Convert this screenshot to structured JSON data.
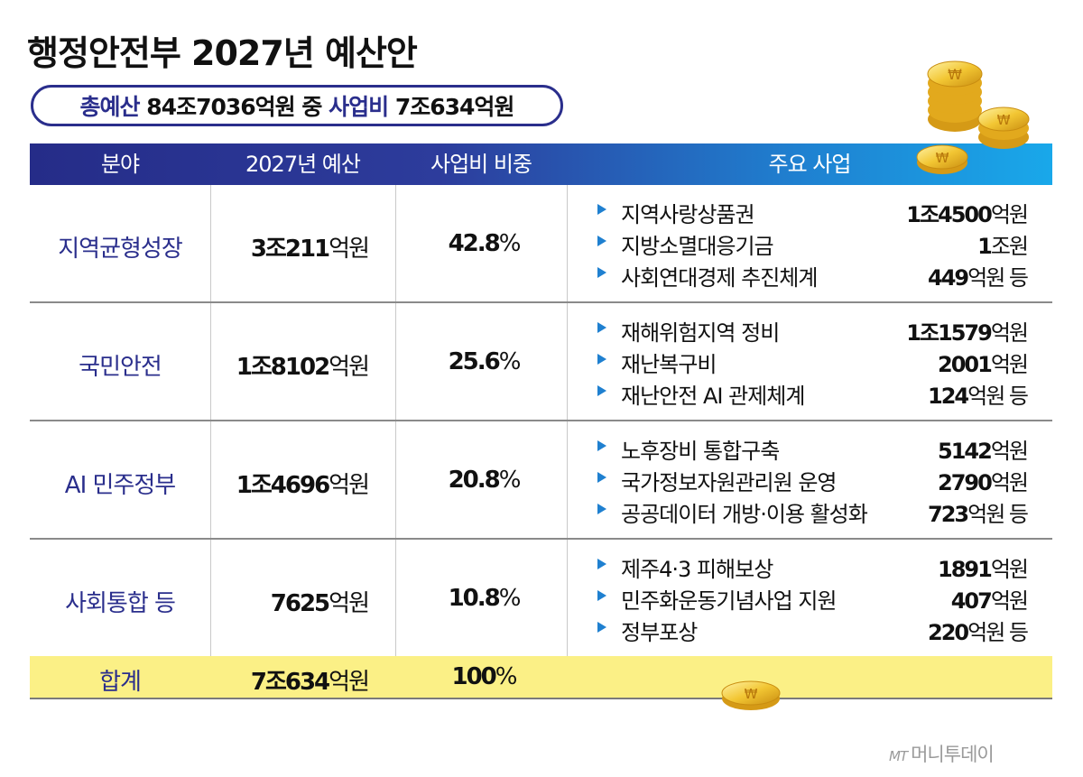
{
  "title": "행정안전부 2027년 예산안",
  "summary": {
    "label1": "총예산",
    "value1": "84조7036억원",
    "mid": "중",
    "label2": "사업비",
    "value2": "7조634억원"
  },
  "table": {
    "headers": [
      "분야",
      "2027년 예산",
      "사업비 비중",
      "주요 사업"
    ],
    "rows": [
      {
        "category": "지역균형성장",
        "budget_num": "3조211",
        "budget_unit": "억원",
        "ratio_num": "42.8",
        "ratio_unit": "%",
        "items": [
          {
            "name": "지역사랑상품권",
            "amount": "1조4500",
            "unit": "억원"
          },
          {
            "name": "지방소멸대응기금",
            "amount": "1",
            "unit": "조원"
          },
          {
            "name": "사회연대경제 추진체계",
            "amount": "449",
            "unit": "억원 등"
          }
        ]
      },
      {
        "category": "국민안전",
        "budget_num": "1조8102",
        "budget_unit": "억원",
        "ratio_num": "25.6",
        "ratio_unit": "%",
        "items": [
          {
            "name": "재해위험지역 정비",
            "amount": "1조1579",
            "unit": "억원"
          },
          {
            "name": "재난복구비",
            "amount": "2001",
            "unit": "억원"
          },
          {
            "name": "재난안전 AI 관제체계",
            "amount": "124",
            "unit": "억원 등"
          }
        ]
      },
      {
        "category": "AI 민주정부",
        "budget_num": "1조4696",
        "budget_unit": "억원",
        "ratio_num": "20.8",
        "ratio_unit": "%",
        "items": [
          {
            "name": "노후장비 통합구축",
            "amount": "5142",
            "unit": "억원"
          },
          {
            "name": "국가정보자원관리원 운영",
            "amount": "2790",
            "unit": "억원"
          },
          {
            "name": "공공데이터 개방·이용 활성화",
            "amount": "723",
            "unit": "억원 등"
          }
        ]
      },
      {
        "category": "사회통합 등",
        "budget_num": "7625",
        "budget_unit": "억원",
        "ratio_num": "10.8",
        "ratio_unit": "%",
        "items": [
          {
            "name": "제주4·3 피해보상",
            "amount": "1891",
            "unit": "억원"
          },
          {
            "name": "민주화운동기념사업 지원",
            "amount": "407",
            "unit": "억원"
          },
          {
            "name": "정부포상",
            "amount": "220",
            "unit": "억원 등"
          }
        ]
      }
    ],
    "total": {
      "label": "합계",
      "budget_num": "7조634",
      "budget_unit": "억원",
      "ratio_num": "100",
      "ratio_unit": "%"
    }
  },
  "logo": {
    "mark": "MT",
    "text": "머니투데이"
  },
  "colors": {
    "navy": "#2a2e8c",
    "accent_blue": "#1f80d0",
    "total_row": "#fbf086"
  },
  "icons": [
    "won-coin-icon"
  ]
}
